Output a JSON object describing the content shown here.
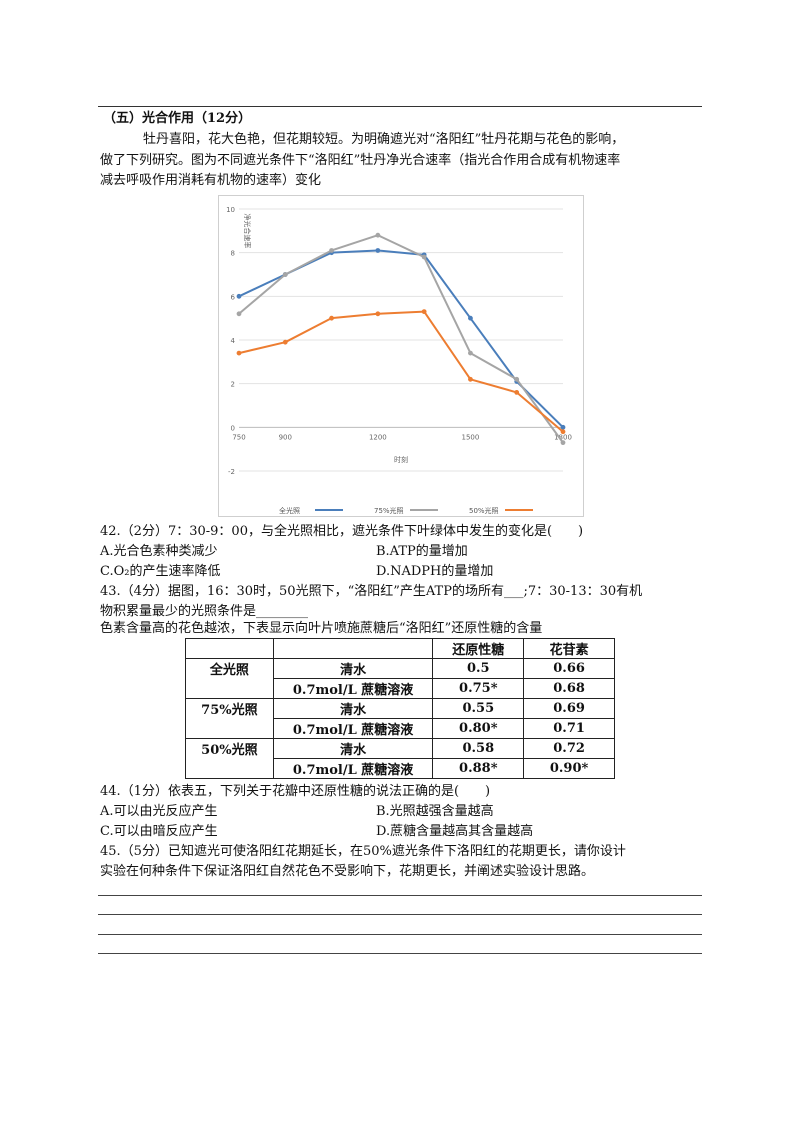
{
  "section_title": "（五）光合作用（12分）",
  "intro": [
    "牡丹喜阳，花大色艳，但花期较短。为明确遮光对“洛阳红”牡丹花期与花色的影响，",
    "做了下列研究。图为不同遮光条件下“洛阳红”牡丹净光合速率（指光合作用合成有机物速率",
    "减去呼吸作用消耗有机物的速率）变化"
  ],
  "chart_data": {
    "type": "line",
    "ylabel": "净光合速率",
    "xlabel": "时刻",
    "x": [
      750,
      900,
      1050,
      1200,
      1350,
      1500,
      1650,
      1800
    ],
    "x_tick_labels": [
      "750",
      "900",
      "1200",
      "1500",
      "1800"
    ],
    "x_tick_values": [
      750,
      900,
      1200,
      1500,
      1800
    ],
    "y_ticks": [
      -2,
      0,
      2,
      4,
      6,
      8,
      10
    ],
    "ylim": [
      -2,
      10
    ],
    "grid": true,
    "legend_position": "bottom",
    "series": [
      {
        "name": "全光照",
        "color": "#4a7ebb",
        "values": [
          6.0,
          7.0,
          8.0,
          8.1,
          7.9,
          5.0,
          2.1,
          0.0
        ]
      },
      {
        "name": "75%光照",
        "color": "#a5a5a5",
        "values": [
          5.2,
          7.0,
          8.1,
          8.8,
          7.8,
          3.4,
          2.2,
          -0.7
        ]
      },
      {
        "name": "50%光照",
        "color": "#ed7d31",
        "values": [
          3.4,
          3.9,
          5.0,
          5.2,
          5.3,
          2.2,
          1.6,
          -0.2
        ]
      }
    ]
  },
  "q42": {
    "stem": "42.（2分）7：30-9：00，与全光照相比，遮光条件下叶绿体中发生的变化是(　　)",
    "a": "A.光合色素种类减少",
    "b": "B.ATP的量增加",
    "c": "C.O₂的产生速率降低",
    "d": "D.NADPH的量增加"
  },
  "q43": {
    "line1": "43.（4分）据图，16：30时，50光照下，“洛阳红”产生ATP的场所有___;7：30-13：30有机",
    "line2": "物积累量最少的光照条件是________"
  },
  "table_intro": "色素含量高的花色越浓，下表显示向叶片喷施蔗糖后“洛阳红”还原性糖的含量",
  "table": {
    "headers": [
      "",
      "",
      "还原性糖",
      "花苷素"
    ],
    "rows": [
      {
        "group": "全光照",
        "treat": "清水",
        "sugar": "0.5",
        "anth": "0.66"
      },
      {
        "group": "",
        "treat": "0.7mol/L 蔗糖溶液",
        "sugar": "0.75*",
        "anth": "0.68"
      },
      {
        "group": "75%光照",
        "treat": "清水",
        "sugar": "0.55",
        "anth": "0.69"
      },
      {
        "group": "",
        "treat": "0.7mol/L 蔗糖溶液",
        "sugar": "0.80*",
        "anth": "0.71"
      },
      {
        "group": "50%光照",
        "treat": "清水",
        "sugar": "0.58",
        "anth": "0.72"
      },
      {
        "group": "",
        "treat": "0.7mol/L 蔗糖溶液",
        "sugar": "0.88*",
        "anth": "0.90*"
      }
    ]
  },
  "q44": {
    "stem": "44.（1分）依表五，下列关于花瓣中还原性糖的说法正确的是(　　)",
    "a": "A.可以由光反应产生",
    "b": "B.光照越强含量越高",
    "c": "C.可以由暗反应产生",
    "d": "D.蔗糖含量越高其含量越高"
  },
  "q45": {
    "line1": "45.（5分）已知遮光可使洛阳红花期延长，在50%遮光条件下洛阳红的花期更长，请你设计",
    "line2": "实验在何种条件下保证洛阳红自然花色不受影响下，花期更长，并阐述实验设计思路。"
  }
}
